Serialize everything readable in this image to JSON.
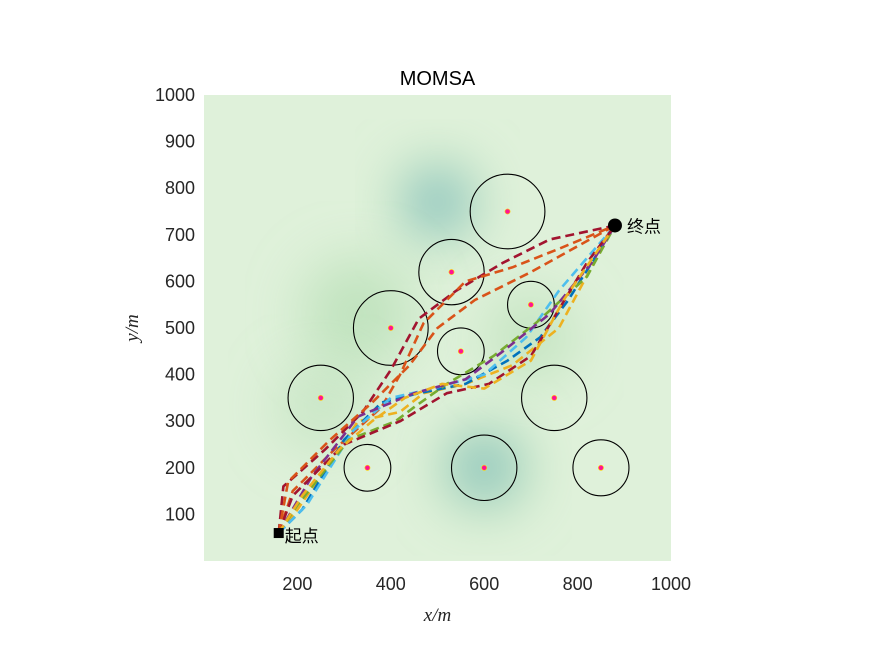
{
  "chart_data": {
    "type": "scatter",
    "title": "MOMSA",
    "xlabel": "x/m",
    "ylabel": "y/m",
    "xlim": [
      0,
      1000
    ],
    "ylim": [
      0,
      1000
    ],
    "xticks": [
      200,
      400,
      600,
      800,
      1000
    ],
    "yticks": [
      100,
      200,
      300,
      400,
      500,
      600,
      700,
      800,
      900,
      1000
    ],
    "grid": false,
    "background_colors": {
      "low": "#dff1da",
      "mid": "#a8d8a8",
      "deep": "#3a9bd4"
    },
    "terrain_peaks": [
      {
        "x": 500,
        "y": 770,
        "strength": 1.0,
        "radius": 80
      },
      {
        "x": 600,
        "y": 200,
        "strength": 0.85,
        "radius": 85
      },
      {
        "x": 330,
        "y": 530,
        "strength": 0.35,
        "radius": 110
      },
      {
        "x": 700,
        "y": 480,
        "strength": 0.3,
        "radius": 90
      },
      {
        "x": 250,
        "y": 330,
        "strength": 0.25,
        "radius": 90
      }
    ],
    "obstacles": [
      {
        "x": 650,
        "y": 750,
        "r": 80
      },
      {
        "x": 530,
        "y": 620,
        "r": 70
      },
      {
        "x": 700,
        "y": 550,
        "r": 50
      },
      {
        "x": 400,
        "y": 500,
        "r": 80
      },
      {
        "x": 550,
        "y": 450,
        "r": 50
      },
      {
        "x": 250,
        "y": 350,
        "r": 70
      },
      {
        "x": 750,
        "y": 350,
        "r": 70
      },
      {
        "x": 350,
        "y": 200,
        "r": 50
      },
      {
        "x": 600,
        "y": 200,
        "r": 70
      },
      {
        "x": 850,
        "y": 200,
        "r": 60
      }
    ],
    "obstacle_center_color": "#ff1493",
    "start": {
      "x": 160,
      "y": 60,
      "label": "起点"
    },
    "end": {
      "x": 880,
      "y": 720,
      "label": "终点"
    },
    "paths": [
      {
        "color": "#a2142f",
        "points": [
          [
            160,
            60
          ],
          [
            170,
            160
          ],
          [
            260,
            240
          ],
          [
            340,
            320
          ],
          [
            400,
            410
          ],
          [
            460,
            520
          ],
          [
            540,
            580
          ],
          [
            640,
            640
          ],
          [
            740,
            690
          ],
          [
            880,
            720
          ]
        ]
      },
      {
        "color": "#d95319",
        "points": [
          [
            160,
            60
          ],
          [
            190,
            150
          ],
          [
            280,
            240
          ],
          [
            380,
            330
          ],
          [
            420,
            400
          ],
          [
            470,
            510
          ],
          [
            560,
            600
          ],
          [
            660,
            630
          ],
          [
            760,
            670
          ],
          [
            880,
            720
          ]
        ]
      },
      {
        "color": "#edb120",
        "points": [
          [
            160,
            60
          ],
          [
            200,
            110
          ],
          [
            330,
            300
          ],
          [
            420,
            320
          ],
          [
            470,
            360
          ],
          [
            560,
            380
          ],
          [
            660,
            420
          ],
          [
            760,
            500
          ],
          [
            840,
            650
          ],
          [
            880,
            720
          ]
        ]
      },
      {
        "color": "#0072bd",
        "points": [
          [
            160,
            60
          ],
          [
            210,
            110
          ],
          [
            300,
            260
          ],
          [
            380,
            340
          ],
          [
            460,
            360
          ],
          [
            560,
            380
          ],
          [
            650,
            430
          ],
          [
            720,
            480
          ],
          [
            780,
            560
          ],
          [
            880,
            720
          ]
        ]
      },
      {
        "color": "#4dbeee",
        "points": [
          [
            160,
            60
          ],
          [
            220,
            120
          ],
          [
            320,
            280
          ],
          [
            400,
            350
          ],
          [
            490,
            370
          ],
          [
            600,
            400
          ],
          [
            690,
            480
          ],
          [
            760,
            580
          ],
          [
            880,
            720
          ]
        ]
      },
      {
        "color": "#77ac30",
        "points": [
          [
            160,
            60
          ],
          [
            200,
            120
          ],
          [
            310,
            260
          ],
          [
            410,
            300
          ],
          [
            450,
            330
          ],
          [
            520,
            380
          ],
          [
            620,
            440
          ],
          [
            710,
            510
          ],
          [
            820,
            610
          ],
          [
            880,
            720
          ]
        ]
      },
      {
        "color": "#7e2f8e",
        "points": [
          [
            160,
            60
          ],
          [
            230,
            180
          ],
          [
            330,
            310
          ],
          [
            450,
            360
          ],
          [
            560,
            390
          ],
          [
            640,
            450
          ],
          [
            740,
            530
          ],
          [
            830,
            640
          ],
          [
            880,
            720
          ]
        ]
      },
      {
        "color": "#a2142f",
        "points": [
          [
            160,
            60
          ],
          [
            190,
            140
          ],
          [
            300,
            250
          ],
          [
            420,
            300
          ],
          [
            520,
            360
          ],
          [
            610,
            380
          ],
          [
            700,
            440
          ],
          [
            760,
            540
          ],
          [
            820,
            640
          ],
          [
            880,
            720
          ]
        ]
      },
      {
        "color": "#d95319",
        "points": [
          [
            160,
            60
          ],
          [
            180,
            170
          ],
          [
            270,
            260
          ],
          [
            360,
            340
          ],
          [
            440,
            420
          ],
          [
            500,
            500
          ],
          [
            580,
            560
          ],
          [
            700,
            620
          ],
          [
            880,
            720
          ]
        ]
      },
      {
        "color": "#edb120",
        "points": [
          [
            160,
            60
          ],
          [
            210,
            140
          ],
          [
            290,
            240
          ],
          [
            360,
            300
          ],
          [
            430,
            350
          ],
          [
            510,
            380
          ],
          [
            600,
            370
          ],
          [
            700,
            430
          ],
          [
            770,
            560
          ],
          [
            880,
            720
          ]
        ]
      }
    ]
  }
}
